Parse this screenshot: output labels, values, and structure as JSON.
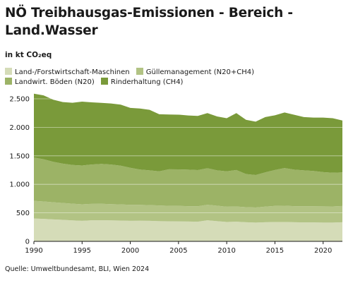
{
  "chart_data": {
    "type": "area",
    "stacked": true,
    "title": "NÖ Treibhausgas-Emissionen - Bereich - Land.Wasser",
    "unit": "in kt CO₂eq",
    "source": "Quelle: Umweltbundesamt, BLI, Wien 2024",
    "x": [
      1990,
      1991,
      1992,
      1993,
      1994,
      1995,
      1996,
      1997,
      1998,
      1999,
      2000,
      2001,
      2002,
      2003,
      2004,
      2005,
      2006,
      2007,
      2008,
      2009,
      2010,
      2011,
      2012,
      2013,
      2014,
      2015,
      2016,
      2017,
      2018,
      2019,
      2020,
      2021,
      2022
    ],
    "ylim": [
      0,
      2500
    ],
    "yticks": [
      0,
      500,
      1000,
      1500,
      2000,
      2500
    ],
    "yticklabels": [
      "0",
      "500",
      "1.000",
      "1.500",
      "2.000",
      "2.500"
    ],
    "xticks": [
      1990,
      1995,
      2000,
      2005,
      2010,
      2015,
      2020
    ],
    "grid": true,
    "legend_position": "top",
    "series": [
      {
        "name": "Land-/Forstwirtschaft-Maschinen",
        "color": "#d5dcb8",
        "values": [
          400,
          395,
          385,
          378,
          368,
          360,
          370,
          372,
          368,
          365,
          360,
          362,
          360,
          355,
          352,
          350,
          348,
          345,
          370,
          355,
          340,
          345,
          335,
          330,
          335,
          340,
          340,
          335,
          333,
          332,
          330,
          330,
          335
        ]
      },
      {
        "name": "Güllemanagement (N20+CH4)",
        "color": "#b2c384",
        "values": [
          310,
          305,
          300,
          295,
          292,
          290,
          288,
          287,
          285,
          283,
          280,
          278,
          276,
          274,
          272,
          272,
          270,
          270,
          272,
          270,
          268,
          266,
          265,
          264,
          275,
          282,
          285,
          282,
          282,
          283,
          284,
          283,
          285
        ]
      },
      {
        "name": "Landwirt. Böden (N20)",
        "color": "#9cb366",
        "values": [
          760,
          740,
          710,
          690,
          680,
          680,
          690,
          700,
          695,
          680,
          650,
          620,
          610,
          600,
          640,
          640,
          640,
          635,
          640,
          620,
          620,
          640,
          580,
          570,
          600,
          630,
          660,
          640,
          630,
          620,
          600,
          590,
          590
        ]
      },
      {
        "name": "Rinderhaltung (CH4)",
        "color": "#7a9a3a",
        "values": [
          1120,
          1120,
          1090,
          1080,
          1090,
          1120,
          1090,
          1070,
          1070,
          1070,
          1050,
          1070,
          1060,
          1000,
          960,
          960,
          950,
          950,
          968,
          945,
          932,
          999,
          952,
          936,
          970,
          958,
          975,
          963,
          935,
          935,
          956,
          957,
          910
        ]
      }
    ]
  }
}
